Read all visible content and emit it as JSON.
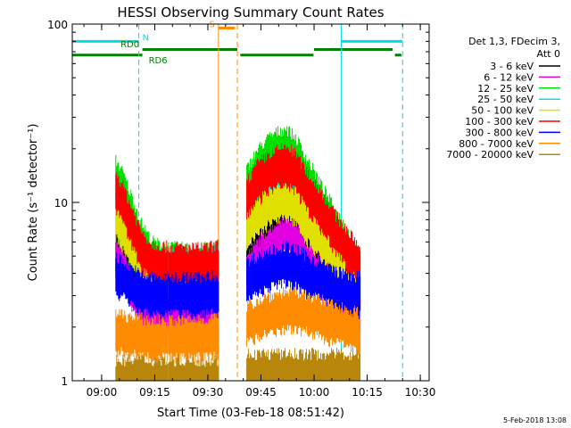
{
  "chart_data": {
    "type": "line",
    "title": "HESSI Observing Summary Count Rates",
    "xlabel": "Start Time (03-Feb-18 08:51:42)",
    "ylabel": "Count Rate (s⁻¹ detector⁻¹)",
    "yscale": "log",
    "ylim": [
      1,
      100
    ],
    "xlim": [
      "08:51:42",
      "10:32:30"
    ],
    "x_ticks": [
      "09:00",
      "09:15",
      "09:30",
      "09:45",
      "10:00",
      "10:15",
      "10:30"
    ],
    "y_ticks": [
      "1",
      "10",
      "100"
    ],
    "grid": false,
    "legend_position": "right",
    "legend_header": [
      "Det 1,3, FDecim 3,",
      "Att 0"
    ],
    "date_stamp": "5-Feb-2018 13:08",
    "series": [
      {
        "name": "3 - 6 keV",
        "color": "#000000",
        "segments": [
          {
            "x": [
              "09:04",
              "09:06",
              "09:08",
              "09:11",
              "09:14",
              "09:18",
              "09:24",
              "09:29",
              "09:33"
            ],
            "y": [
              6.5,
              6.0,
              4.8,
              3.6,
              3.3,
              3.4,
              3.3,
              3.3,
              4.0
            ]
          },
          {
            "x": [
              "09:41",
              "09:44",
              "09:47",
              "09:50",
              "09:52",
              "09:55",
              "09:58",
              "10:02",
              "10:06",
              "10:10",
              "10:13"
            ],
            "y": [
              5.3,
              6.5,
              7.6,
              8.6,
              9.3,
              8.4,
              6.6,
              5.2,
              4.3,
              3.8,
              3.6
            ]
          }
        ]
      },
      {
        "name": "6 - 12 keV",
        "color": "#e000e0",
        "segments": [
          {
            "x": [
              "09:04",
              "09:06",
              "09:08",
              "09:11",
              "09:14",
              "09:18",
              "09:24",
              "09:29",
              "09:33"
            ],
            "y": [
              5.5,
              5.0,
              4.0,
              3.0,
              2.7,
              2.8,
              2.7,
              2.7,
              3.2
            ]
          },
          {
            "x": [
              "09:41",
              "09:44",
              "09:47",
              "09:50",
              "09:52",
              "09:55",
              "09:58",
              "10:02",
              "10:06",
              "10:10",
              "10:13"
            ],
            "y": [
              4.5,
              5.5,
              6.5,
              7.2,
              7.8,
              7.0,
              5.6,
              4.4,
              3.6,
              3.1,
              3.0
            ]
          }
        ]
      },
      {
        "name": "12 - 25 keV",
        "color": "#00e000",
        "segments": [
          {
            "x": [
              "09:04",
              "09:06",
              "09:08",
              "09:11",
              "09:14",
              "09:18",
              "09:24",
              "09:29",
              "09:33"
            ],
            "y": [
              16,
              13.5,
              10.5,
              7.2,
              5.6,
              5.2,
              5.1,
              5.1,
              5.4
            ]
          },
          {
            "x": [
              "09:41",
              "09:44",
              "09:47",
              "09:50",
              "09:52",
              "09:55",
              "09:58",
              "10:02",
              "10:06",
              "10:10",
              "10:13"
            ],
            "y": [
              14,
              18,
              21,
              23,
              24,
              21,
              16,
              11.5,
              8.2,
              6.2,
              5.1
            ]
          }
        ]
      },
      {
        "name": "25 - 50 keV",
        "color": "#00e0e0",
        "segments": [
          {
            "x": [
              "09:04",
              "09:06",
              "09:08",
              "09:11",
              "09:14",
              "09:18",
              "09:24",
              "09:29",
              "09:33"
            ],
            "y": [
              10,
              8.5,
              6.8,
              5.2,
              4.8,
              4.8,
              4.8,
              4.8,
              5.0
            ]
          },
          {
            "x": [
              "09:41",
              "09:44",
              "09:47",
              "09:50",
              "09:52",
              "09:55",
              "09:58",
              "10:02",
              "10:06",
              "10:10",
              "10:13"
            ],
            "y": [
              8.8,
              11,
              12.5,
              13.5,
              14,
              12.5,
              10,
              8,
              6.3,
              5.2,
              4.6
            ]
          }
        ]
      },
      {
        "name": "50 - 100 keV",
        "color": "#e0e000",
        "segments": [
          {
            "x": [
              "09:04",
              "09:06",
              "09:08",
              "09:11",
              "09:14",
              "09:18",
              "09:24",
              "09:29",
              "09:33"
            ],
            "y": [
              9.5,
              8.0,
              6.5,
              5.0,
              4.5,
              4.4,
              4.4,
              4.4,
              4.7
            ]
          },
          {
            "x": [
              "09:41",
              "09:44",
              "09:47",
              "09:50",
              "09:52",
              "09:55",
              "09:58",
              "10:02",
              "10:06",
              "10:10",
              "10:13"
            ],
            "y": [
              8.2,
              10,
              11,
              12,
              12.5,
              11.2,
              9,
              7.2,
              5.8,
              4.8,
              4.3
            ]
          }
        ]
      },
      {
        "name": "100 - 300 keV",
        "color": "#ff0000",
        "segments": [
          {
            "x": [
              "09:04",
              "09:06",
              "09:08",
              "09:11",
              "09:14",
              "09:18",
              "09:24",
              "09:29",
              "09:33"
            ],
            "y": [
              13.5,
              11.5,
              9.0,
              6.4,
              5.4,
              5.2,
              5.1,
              5.1,
              5.3
            ]
          },
          {
            "x": [
              "09:41",
              "09:44",
              "09:47",
              "09:50",
              "09:52",
              "09:55",
              "09:58",
              "10:02",
              "10:06",
              "10:10",
              "10:13"
            ],
            "y": [
              12,
              15,
              17,
              18,
              19,
              17,
              13.5,
              10.5,
              7.8,
              6.1,
              5.1
            ]
          }
        ]
      },
      {
        "name": "300 - 800 keV",
        "color": "#0000ff",
        "segments": [
          {
            "x": [
              "09:04",
              "09:06",
              "09:08",
              "09:11",
              "09:14",
              "09:18",
              "09:24",
              "09:29",
              "09:33"
            ],
            "y": [
              4.6,
              4.4,
              4.0,
              3.6,
              3.5,
              3.5,
              3.5,
              3.5,
              3.6
            ]
          },
          {
            "x": [
              "09:41",
              "09:44",
              "09:47",
              "09:50",
              "09:52",
              "09:55",
              "09:58",
              "10:02",
              "10:06",
              "10:10",
              "10:13"
            ],
            "y": [
              4.2,
              4.6,
              4.9,
              5.1,
              5.2,
              5.0,
              4.6,
              4.2,
              3.8,
              3.6,
              3.5
            ]
          }
        ]
      },
      {
        "name": "800 - 7000 keV",
        "color": "#ff8c00",
        "segments": [
          {
            "x": [
              "09:04",
              "09:08",
              "09:14",
              "09:20",
              "09:26",
              "09:33"
            ],
            "y": [
              2.2,
              2.1,
              2.0,
              2.0,
              2.0,
              2.1
            ]
          },
          {
            "x": [
              "09:41",
              "09:46",
              "09:52",
              "09:58",
              "10:04",
              "10:10",
              "10:13"
            ],
            "y": [
              2.4,
              2.7,
              2.9,
              2.8,
              2.5,
              2.3,
              2.2
            ]
          }
        ]
      },
      {
        "name": "7000 - 20000 keV",
        "color": "#b8860b",
        "segments": [
          {
            "x": [
              "09:04",
              "09:10",
              "09:18",
              "09:26",
              "09:33"
            ],
            "y": [
              1.2,
              1.2,
              1.2,
              1.2,
              1.2
            ]
          },
          {
            "x": [
              "09:41",
              "09:50",
              "10:00",
              "10:10",
              "10:13"
            ],
            "y": [
              1.3,
              1.3,
              1.3,
              1.3,
              1.3
            ]
          }
        ]
      }
    ],
    "markers": {
      "vlines": [
        {
          "x": "08:51:42",
          "color": "#00e0e0",
          "style": "solid"
        },
        {
          "x": "09:10:30",
          "color": "#00e0e0",
          "style": "dashed"
        },
        {
          "x": "09:33:00",
          "color": "#ff8c00",
          "style": "solid"
        },
        {
          "x": "09:38:20",
          "color": "#ff8c00",
          "style": "dashed"
        },
        {
          "x": "10:07:40",
          "color": "#00e0e0",
          "style": "solid"
        },
        {
          "x": "10:25:00",
          "color": "#00e0e0",
          "style": "dashed"
        }
      ],
      "bars": [
        {
          "x": [
            "08:51:42",
            "09:10:30"
          ],
          "y": 80,
          "color": "#00e0e0",
          "label": "N"
        },
        {
          "x": [
            "10:07:40",
            "10:25:00"
          ],
          "y": 80,
          "color": "#00e0e0",
          "label": ""
        },
        {
          "x": [
            "09:33:00",
            "09:37:40"
          ],
          "y": 95,
          "color": "#ff8c00",
          "label": "S"
        },
        {
          "x": [
            "08:51:42",
            "09:11:30"
          ],
          "y": 67,
          "color": "#008000",
          "label": "RD6"
        },
        {
          "x": [
            "09:11:30",
            "09:38:20"
          ],
          "y": 72,
          "color": "#008000",
          "label": ""
        },
        {
          "x": [
            "09:39:10",
            "09:59:50"
          ],
          "y": 67,
          "color": "#008000",
          "label": ""
        },
        {
          "x": [
            "10:00:00",
            "10:22:10"
          ],
          "y": 72,
          "color": "#008000",
          "label": ""
        },
        {
          "x": [
            "10:22:50",
            "10:24:40"
          ],
          "y": 67,
          "color": "#008000",
          "label": ""
        }
      ],
      "labels": [
        {
          "text": "RD0",
          "x": "09:05:20",
          "y": 74,
          "color": "#008000"
        }
      ]
    }
  }
}
